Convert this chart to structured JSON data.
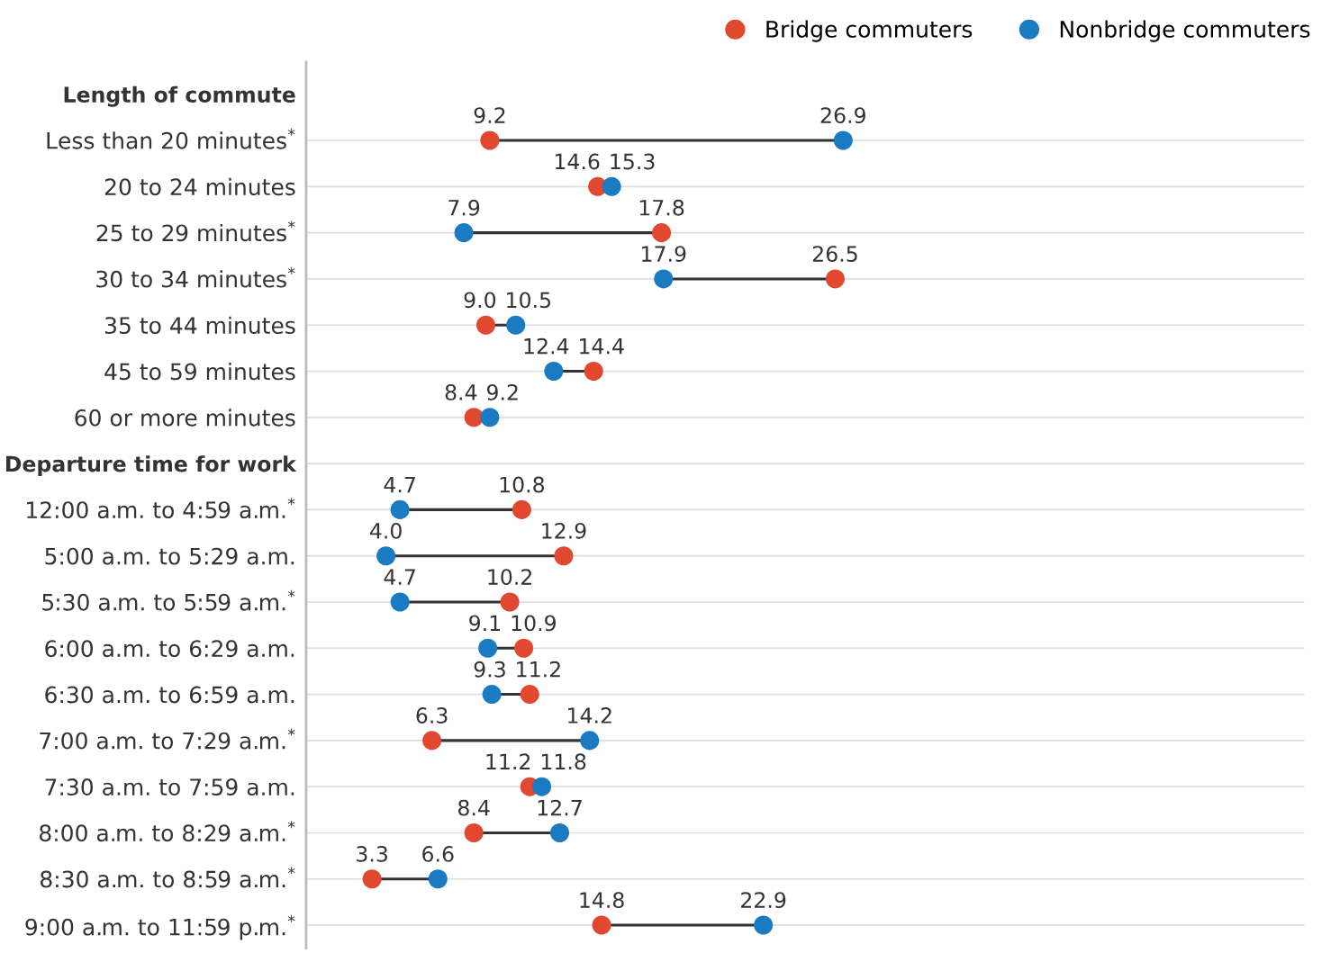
{
  "chart_data": {
    "type": "scatter",
    "orientation": "horizontal",
    "categories": [
      "Length of commute",
      "Less than 20 minutes$^{*}$",
      "20 to 24 minutes",
      "25 to 29 minutes$^{*}$",
      "30 to 34 minutes$^{*}$",
      "35 to 44 minutes",
      "45 to 59 minutes",
      "60 or more minutes",
      "Departure time for work",
      "12:00 a.m. to 4:59 a.m.$^{*}$",
      "5:00 a.m. to 5:29 a.m.",
      "5:30 a.m. to 5:59 a.m.$^{*}$",
      "6:00 a.m. to 6:29 a.m.",
      "6:30 a.m. to 6:59 a.m.",
      "7:00 a.m. to 7:29 a.m.$^{*}$",
      "7:30 a.m. to 7:59 a.m.",
      "8:00 a.m. to 8:29 a.m.$^{*}$",
      "8:30 a.m. to 8:59 a.m.$^{*}$",
      "9:00 a.m. to 11:59 p.m.$^{*}$"
    ],
    "series": [
      {
        "name": "Bridge commuters",
        "color": "#e0492f",
        "values": [
          null,
          9.2,
          14.6,
          17.8,
          26.5,
          9.0,
          14.4,
          8.4,
          null,
          10.8,
          12.9,
          10.2,
          10.9,
          11.2,
          6.3,
          11.2,
          8.4,
          3.3,
          14.8
        ],
        "value_labels": [
          null,
          "9.2",
          "14.6",
          "17.8",
          "26.5",
          "9.0",
          "14.4",
          "8.4",
          null,
          "10.8",
          "12.9",
          "10.2",
          "10.9",
          "11.2",
          "6.3",
          "11.2",
          "8.4",
          "3.3",
          "14.8"
        ]
      },
      {
        "name": "Nonbridge commuters",
        "color": "#1a7ac2",
        "values": [
          null,
          26.9,
          15.3,
          7.9,
          17.9,
          10.5,
          12.4,
          9.2,
          null,
          4.7,
          4.0,
          4.7,
          9.1,
          9.3,
          14.2,
          11.8,
          12.7,
          6.6,
          22.9
        ],
        "value_labels": [
          null,
          "26.9",
          "15.3",
          "7.9",
          "17.9",
          "10.5",
          "12.4",
          "9.2",
          null,
          "4.7",
          "4.0",
          "4.7",
          "9.1",
          "9.3",
          "14.2",
          "11.8",
          "12.7",
          "6.6",
          "22.9"
        ]
      }
    ],
    "xlim": [
      0,
      50
    ],
    "tick_labels": "y",
    "grid": "y",
    "legend": "top right",
    "marker": "circle"
  }
}
